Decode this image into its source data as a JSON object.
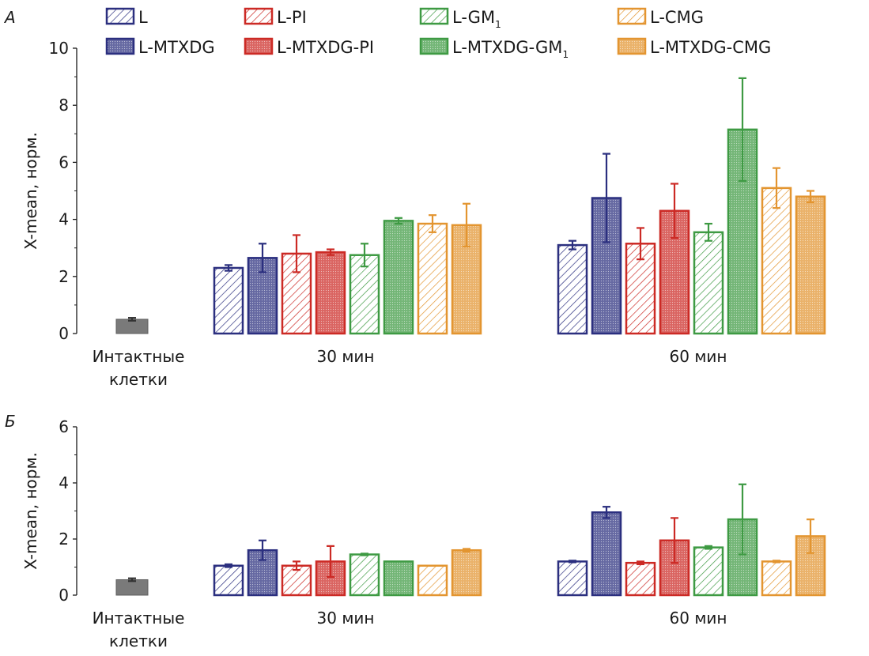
{
  "colors": {
    "L": "#2b2f7f",
    "L-PI": "#cc2a25",
    "L-GM": "#3e9a43",
    "L-CMG": "#e39530",
    "intact": "#7a7a7a",
    "axis": "#1a1a1a"
  },
  "legend": [
    {
      "key": "L",
      "label": "L",
      "fill": "hatch",
      "color": "L"
    },
    {
      "key": "L-PI",
      "label": "L-PI",
      "fill": "hatch",
      "color": "L-PI"
    },
    {
      "key": "L-GM1",
      "label": "L-GM",
      "sub": "1",
      "fill": "hatch",
      "color": "L-GM"
    },
    {
      "key": "L-CMG",
      "label": "L-CMG",
      "fill": "hatch",
      "color": "L-CMG"
    },
    {
      "key": "L-MTXDG",
      "label": "L-MTXDG",
      "fill": "solid",
      "color": "L"
    },
    {
      "key": "L-MTXDG-PI",
      "label": "L-MTXDG-PI",
      "fill": "solid",
      "color": "L-PI"
    },
    {
      "key": "L-MTXDG-GM1",
      "label": "L-MTXDG-GM",
      "sub": "1",
      "fill": "solid",
      "color": "L-GM"
    },
    {
      "key": "L-MTXDG-CMG",
      "label": "L-MTXDG-CMG",
      "fill": "solid",
      "color": "L-CMG"
    }
  ],
  "chart_data": [
    {
      "type": "bar",
      "panel_label": "А",
      "ylabel": "X-mean, норм.",
      "ylim": [
        0,
        10
      ],
      "yticks": [
        0,
        2,
        4,
        6,
        8,
        10
      ],
      "categories": [
        "Интактные клетки",
        "30 мин",
        "60 мин"
      ],
      "category_lines": [
        [
          "Интактные",
          "клетки"
        ],
        [
          "30 мин"
        ],
        [
          "60 мин"
        ]
      ],
      "intact": {
        "value": 0.5,
        "error": 0.05
      },
      "series": [
        {
          "name": "L",
          "values": [
            null,
            2.3,
            3.1
          ],
          "errors": [
            null,
            0.1,
            0.15
          ]
        },
        {
          "name": "L-MTXDG",
          "values": [
            null,
            2.65,
            4.75
          ],
          "errors": [
            null,
            0.5,
            1.55
          ]
        },
        {
          "name": "L-PI",
          "values": [
            null,
            2.8,
            3.15
          ],
          "errors": [
            null,
            0.65,
            0.55
          ]
        },
        {
          "name": "L-MTXDG-PI",
          "values": [
            null,
            2.85,
            4.3
          ],
          "errors": [
            null,
            0.1,
            0.95
          ]
        },
        {
          "name": "L-GM1",
          "values": [
            null,
            2.75,
            3.55
          ],
          "errors": [
            null,
            0.4,
            0.3
          ]
        },
        {
          "name": "L-MTXDG-GM1",
          "values": [
            null,
            3.95,
            7.15
          ],
          "errors": [
            null,
            0.1,
            1.8
          ]
        },
        {
          "name": "L-CMG",
          "values": [
            null,
            3.85,
            5.1
          ],
          "errors": [
            null,
            0.3,
            0.7
          ]
        },
        {
          "name": "L-MTXDG-CMG",
          "values": [
            null,
            3.8,
            4.8
          ],
          "errors": [
            null,
            0.75,
            0.2
          ]
        }
      ]
    },
    {
      "type": "bar",
      "panel_label": "Б",
      "ylabel": "X-mean, норм.",
      "ylim": [
        0,
        6
      ],
      "yticks": [
        0,
        2,
        4,
        6
      ],
      "categories": [
        "Интактные клетки",
        "30 мин",
        "60 мин"
      ],
      "category_lines": [
        [
          "Интактные",
          "клетки"
        ],
        [
          "30 мин"
        ],
        [
          "60 мин"
        ]
      ],
      "intact": {
        "value": 0.55,
        "error": 0.05
      },
      "series": [
        {
          "name": "L",
          "values": [
            null,
            1.05,
            1.2
          ],
          "errors": [
            null,
            0.05,
            0.03
          ]
        },
        {
          "name": "L-MTXDG",
          "values": [
            null,
            1.6,
            2.95
          ],
          "errors": [
            null,
            0.35,
            0.2
          ]
        },
        {
          "name": "L-PI",
          "values": [
            null,
            1.05,
            1.15
          ],
          "errors": [
            null,
            0.15,
            0.05
          ]
        },
        {
          "name": "L-MTXDG-PI",
          "values": [
            null,
            1.2,
            1.95
          ],
          "errors": [
            null,
            0.55,
            0.8
          ]
        },
        {
          "name": "L-GM1",
          "values": [
            null,
            1.45,
            1.7
          ],
          "errors": [
            null,
            0.03,
            0.05
          ]
        },
        {
          "name": "L-MTXDG-GM1",
          "values": [
            null,
            1.2,
            2.7
          ],
          "errors": [
            null,
            0.0,
            1.25
          ]
        },
        {
          "name": "L-CMG",
          "values": [
            null,
            1.05,
            1.2
          ],
          "errors": [
            null,
            0.0,
            0.03
          ]
        },
        {
          "name": "L-MTXDG-CMG",
          "values": [
            null,
            1.6,
            2.1
          ],
          "errors": [
            null,
            0.05,
            0.6
          ]
        }
      ]
    }
  ]
}
